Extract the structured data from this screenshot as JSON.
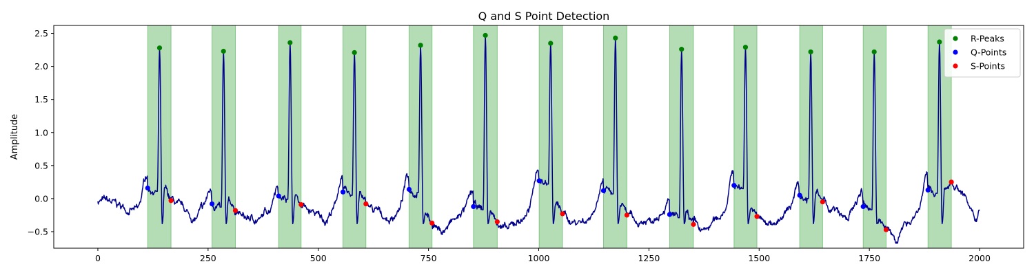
{
  "chart_data": {
    "type": "line",
    "title": "Q and S Point Detection",
    "xlabel": "",
    "ylabel": "Amplitude",
    "xlim": [
      -100,
      2100
    ],
    "ylim": [
      -0.75,
      2.62
    ],
    "xticks": [
      0,
      250,
      500,
      750,
      1000,
      1250,
      1500,
      1750,
      2000
    ],
    "xtick_labels": [
      "0",
      "250",
      "500",
      "750",
      "1000",
      "1250",
      "1500",
      "1750",
      "2000"
    ],
    "yticks": [
      -0.5,
      0.0,
      0.5,
      1.0,
      1.5,
      2.0,
      2.5
    ],
    "ytick_labels": [
      "−0.5",
      "0.0",
      "0.5",
      "1.0",
      "1.5",
      "2.0",
      "2.5"
    ],
    "grid": false,
    "legend": {
      "placement": "top-right",
      "entries": [
        {
          "label": "R-Peaks",
          "color": "#008000"
        },
        {
          "label": "Q-Points",
          "color": "#0000ff"
        },
        {
          "label": "S-Points",
          "color": "#ff0000"
        }
      ]
    },
    "colors": {
      "signal": "#00008b",
      "qrs_band": "#4caf50",
      "r_peak": "#008000",
      "q_point": "#0000ff",
      "s_point": "#ff0000"
    },
    "signal_range": [
      0,
      2000
    ],
    "qrs_regions": [
      [
        113,
        166
      ],
      [
        259,
        312
      ],
      [
        410,
        461
      ],
      [
        556,
        608
      ],
      [
        706,
        758
      ],
      [
        852,
        906
      ],
      [
        1001,
        1054
      ],
      [
        1147,
        1200
      ],
      [
        1297,
        1351
      ],
      [
        1443,
        1495
      ],
      [
        1592,
        1644
      ],
      [
        1736,
        1788
      ],
      [
        1883,
        1936
      ]
    ],
    "r_peaks": {
      "x": [
        140,
        285,
        436,
        582,
        732,
        879,
        1027,
        1174,
        1324,
        1469,
        1617,
        1761,
        1909
      ],
      "y": [
        2.28,
        2.23,
        2.36,
        2.21,
        2.32,
        2.47,
        2.35,
        2.43,
        2.26,
        2.29,
        2.22,
        2.22,
        2.37
      ]
    },
    "q_points": {
      "x": [
        113,
        259,
        410,
        556,
        706,
        852,
        1001,
        1147,
        1297,
        1443,
        1592,
        1736,
        1883
      ],
      "y": [
        0.16,
        -0.08,
        0.04,
        0.1,
        0.14,
        -0.12,
        0.27,
        0.12,
        -0.24,
        0.2,
        0.05,
        -0.12,
        0.13
      ]
    },
    "s_points": {
      "x": [
        166,
        312,
        461,
        608,
        758,
        906,
        1054,
        1200,
        1351,
        1495,
        1644,
        1788,
        1936
      ],
      "y": [
        -0.03,
        -0.18,
        -0.09,
        -0.08,
        -0.37,
        -0.35,
        -0.23,
        -0.25,
        -0.39,
        -0.27,
        -0.05,
        -0.47,
        0.25
      ]
    }
  }
}
